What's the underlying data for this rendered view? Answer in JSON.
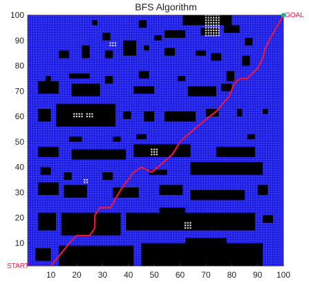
{
  "chart_data": {
    "type": "scatter",
    "title": "BFS Algorithm",
    "xlabel": "",
    "ylabel": "",
    "xlim": [
      1,
      100
    ],
    "ylim": [
      1,
      100
    ],
    "xticks": [
      10,
      20,
      30,
      40,
      50,
      60,
      70,
      80,
      90,
      100
    ],
    "yticks": [
      10,
      20,
      30,
      40,
      50,
      60,
      70,
      80,
      90,
      100
    ],
    "grid_size": 100,
    "colors": {
      "free_cell": "#1f1fe6",
      "free_cell_dots": "#7f8cff",
      "obstacle": "#000000",
      "explored_inside_obstacle": "#dddddd",
      "path": "#e8173f",
      "goal_marker": "#1fae8a",
      "start_label": "#e8173f",
      "goal_label": "#e8173f"
    },
    "start": {
      "x": 1,
      "y": 1,
      "label": "START"
    },
    "goal": {
      "x": 100,
      "y": 100,
      "label": "GOAL"
    },
    "path": [
      [
        1,
        1
      ],
      [
        10,
        1
      ],
      [
        18,
        11
      ],
      [
        20,
        13
      ],
      [
        25,
        13
      ],
      [
        27,
        16
      ],
      [
        27,
        21
      ],
      [
        29,
        24
      ],
      [
        33,
        24
      ],
      [
        37,
        31
      ],
      [
        42,
        38
      ],
      [
        45,
        40
      ],
      [
        49,
        38
      ],
      [
        57,
        45
      ],
      [
        60,
        50
      ],
      [
        62,
        52
      ],
      [
        69,
        58
      ],
      [
        74,
        62
      ],
      [
        79,
        68
      ],
      [
        81,
        73
      ],
      [
        83,
        75
      ],
      [
        86,
        75
      ],
      [
        90,
        79
      ],
      [
        91,
        81
      ],
      [
        92,
        83
      ],
      [
        93,
        87
      ],
      [
        95,
        91
      ],
      [
        100,
        100
      ]
    ],
    "obstacles": [
      [
        61,
        96,
        80,
        100
      ],
      [
        54,
        91,
        62,
        94
      ],
      [
        68,
        92,
        75,
        95
      ],
      [
        77,
        93,
        83,
        96
      ],
      [
        85,
        88,
        88,
        91
      ],
      [
        26,
        96,
        28,
        98
      ],
      [
        30,
        90,
        33,
        93
      ],
      [
        44,
        95,
        47,
        98
      ],
      [
        50,
        90,
        53,
        92
      ],
      [
        38,
        84,
        43,
        90
      ],
      [
        46,
        86,
        48,
        88
      ],
      [
        13,
        83,
        17,
        86
      ],
      [
        22,
        83,
        25,
        88
      ],
      [
        31,
        83,
        34,
        86
      ],
      [
        54,
        84,
        58,
        87
      ],
      [
        66,
        84,
        70,
        86
      ],
      [
        72,
        82,
        76,
        85
      ],
      [
        84,
        80,
        87,
        84
      ],
      [
        8,
        74,
        10,
        76
      ],
      [
        17,
        75,
        25,
        77
      ],
      [
        31,
        73,
        34,
        76
      ],
      [
        44,
        75,
        48,
        78
      ],
      [
        59,
        74,
        62,
        76
      ],
      [
        78,
        74,
        81,
        78
      ],
      [
        5,
        69,
        13,
        74
      ],
      [
        18,
        68,
        29,
        73
      ],
      [
        42,
        69,
        50,
        72
      ],
      [
        63,
        68,
        74,
        72
      ],
      [
        76,
        70,
        80,
        73
      ],
      [
        5,
        58,
        10,
        63
      ],
      [
        12,
        56,
        35,
        65
      ],
      [
        38,
        59,
        41,
        62
      ],
      [
        46,
        58,
        50,
        62
      ],
      [
        54,
        58,
        66,
        62
      ],
      [
        70,
        60,
        75,
        63
      ],
      [
        82,
        60,
        84,
        63
      ],
      [
        92,
        61,
        94,
        63
      ],
      [
        17,
        50,
        22,
        52
      ],
      [
        34,
        50,
        37,
        52
      ],
      [
        43,
        51,
        47,
        53
      ],
      [
        86,
        51,
        89,
        53
      ],
      [
        5,
        44,
        13,
        48
      ],
      [
        18,
        43,
        39,
        47
      ],
      [
        42,
        44,
        64,
        49
      ],
      [
        74,
        44,
        89,
        48
      ],
      [
        6,
        37,
        10,
        40
      ],
      [
        15,
        35,
        18,
        38
      ],
      [
        30,
        35,
        34,
        38
      ],
      [
        48,
        37,
        55,
        39
      ],
      [
        64,
        37,
        92,
        42
      ],
      [
        5,
        29,
        13,
        34
      ],
      [
        15,
        28,
        24,
        33
      ],
      [
        34,
        28,
        44,
        32
      ],
      [
        52,
        29,
        61,
        33
      ],
      [
        64,
        27,
        85,
        31
      ],
      [
        90,
        29,
        94,
        33
      ],
      [
        5,
        15,
        12,
        22
      ],
      [
        14,
        13,
        37,
        22
      ],
      [
        39,
        15,
        89,
        22
      ],
      [
        52,
        22,
        62,
        24
      ],
      [
        92,
        18,
        96,
        21
      ],
      [
        4,
        3,
        10,
        8
      ],
      [
        13,
        1,
        42,
        9
      ],
      [
        45,
        1,
        92,
        10
      ],
      [
        62,
        10,
        78,
        12
      ],
      [
        66,
        0,
        68,
        2
      ]
    ],
    "explored_cells": [
      [
        70,
        92,
        75,
        100
      ],
      [
        23,
        34,
        24,
        35
      ],
      [
        19,
        60,
        22,
        61
      ],
      [
        24,
        60,
        26,
        61
      ],
      [
        49,
        45,
        51,
        47
      ],
      [
        62,
        16,
        64,
        18
      ],
      [
        33,
        88,
        35,
        89
      ]
    ]
  }
}
